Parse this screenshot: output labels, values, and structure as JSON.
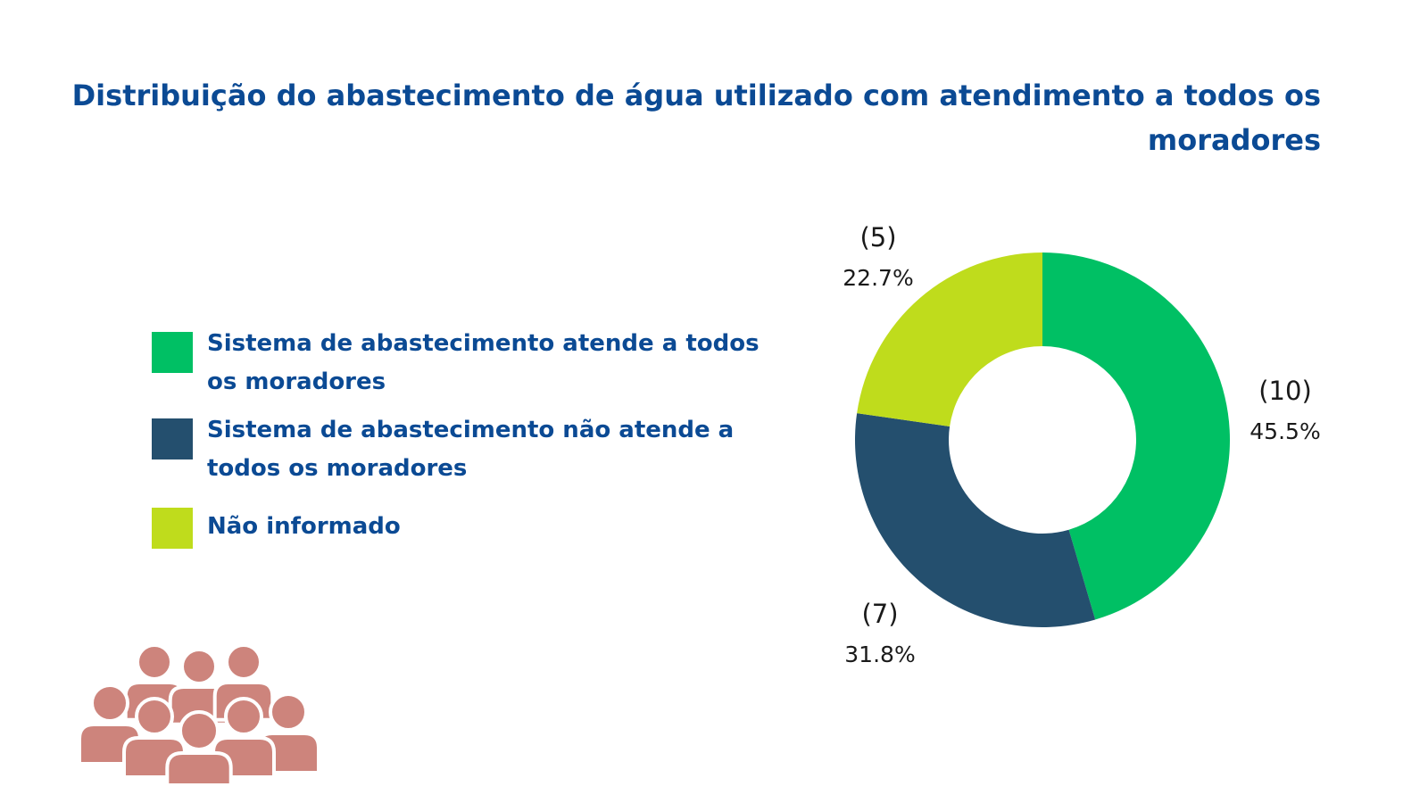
{
  "colors": {
    "title": "#0b4a94",
    "slice_1": "#00c064",
    "slice_2": "#244f6e",
    "slice_3": "#bfdc1c",
    "people_icon": "#cd847c"
  },
  "icon": "people-group-icon",
  "chart_data": {
    "type": "pie",
    "variant": "donut",
    "title": "Distribuição  do abastecimento de água utilizado com atendimento a todos os moradores",
    "categories": [
      "Sistema de abastecimento atende a todos os moradores",
      "Sistema de abastecimento não atende a todos os moradores",
      "Não informado"
    ],
    "values": [
      10,
      7,
      5
    ],
    "percent_labels": [
      "45.5%",
      "31.8%",
      "22.7%"
    ],
    "count_labels": [
      "(10)",
      "(7)",
      "(5)"
    ],
    "legend_placement": "left"
  }
}
